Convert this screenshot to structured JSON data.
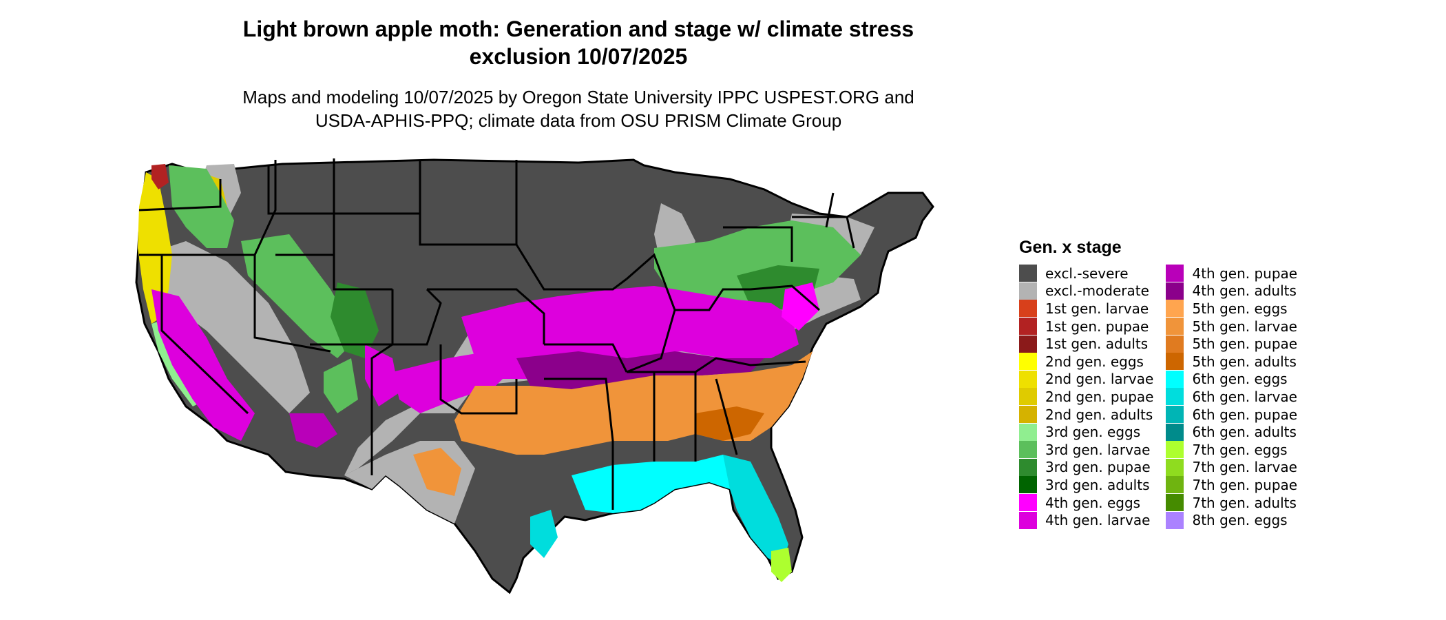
{
  "title_line1": "Light brown apple moth: Generation and stage w/ climate stress",
  "title_line2": "exclusion 10/07/2025",
  "subtitle_line1": "Maps and modeling 10/07/2025 by Oregon State University IPPC USPEST.ORG and",
  "subtitle_line2": "USDA-APHIS-PPQ; climate data from OSU PRISM Climate Group",
  "legend": {
    "title": "Gen. x stage",
    "items": [
      {
        "label": "excl.-severe",
        "color": "#4d4d4d"
      },
      {
        "label": "excl.-moderate",
        "color": "#b3b3b3"
      },
      {
        "label": "1st gen. larvae",
        "color": "#d8401b"
      },
      {
        "label": "1st gen. pupae",
        "color": "#b22222"
      },
      {
        "label": "1st gen. adults",
        "color": "#8b1a1a"
      },
      {
        "label": "2nd gen. eggs",
        "color": "#ffff00"
      },
      {
        "label": "2nd gen. larvae",
        "color": "#eee000"
      },
      {
        "label": "2nd gen. pupae",
        "color": "#dfcb00"
      },
      {
        "label": "2nd gen. adults",
        "color": "#d5b200"
      },
      {
        "label": "3rd gen. eggs",
        "color": "#90ee90"
      },
      {
        "label": "3rd gen. larvae",
        "color": "#5cbf5c"
      },
      {
        "label": "3rd gen. pupae",
        "color": "#2e8b2e"
      },
      {
        "label": "3rd gen. adults",
        "color": "#006400"
      },
      {
        "label": "4th gen. eggs",
        "color": "#ff00ff"
      },
      {
        "label": "4th gen. larvae",
        "color": "#dd00dd"
      },
      {
        "label": "4th gen. pupae",
        "color": "#b900b9"
      },
      {
        "label": "4th gen. adults",
        "color": "#8b008b"
      },
      {
        "label": "5th gen. eggs",
        "color": "#ffa54f"
      },
      {
        "label": "5th gen. larvae",
        "color": "#f0943a"
      },
      {
        "label": "5th gen. pupae",
        "color": "#e07b20"
      },
      {
        "label": "5th gen. adults",
        "color": "#cd6600"
      },
      {
        "label": "6th gen. eggs",
        "color": "#00ffff"
      },
      {
        "label": "6th gen. larvae",
        "color": "#00dddd"
      },
      {
        "label": "6th gen. pupae",
        "color": "#00b5b5"
      },
      {
        "label": "6th gen. adults",
        "color": "#008b8b"
      },
      {
        "label": "7th gen. eggs",
        "color": "#adff2f"
      },
      {
        "label": "7th gen. larvae",
        "color": "#8fdc1f"
      },
      {
        "label": "7th gen. pupae",
        "color": "#6fb410"
      },
      {
        "label": "7th gen. adults",
        "color": "#458b00"
      },
      {
        "label": "8th gen. eggs",
        "color": "#ab82ff"
      }
    ]
  }
}
